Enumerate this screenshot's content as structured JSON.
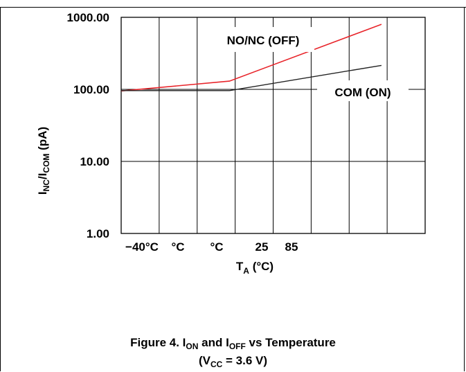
{
  "chart_data": {
    "type": "line",
    "categories": [
      "−40°C",
      "°C",
      "°C",
      "25",
      "85"
    ],
    "ylabel_main": "I",
    "ylabel_sub1": "NC",
    "ylabel_mid": "/I",
    "ylabel_sub2": "COM",
    "ylabel_tail": " (pA)",
    "xlabel_main": "T",
    "xlabel_sub": "A",
    "xlabel_tail": " (°C)",
    "yticks": [
      "1000.00",
      "100.00",
      "10.00",
      "1.00"
    ],
    "ytick_values": [
      1000,
      100,
      10,
      1
    ],
    "ylim": [
      1,
      1000
    ],
    "yscale": "log",
    "grid": true,
    "series": [
      {
        "name": "NO/NC (OFF)",
        "color": "#e8242a",
        "x": [
          0,
          2.85,
          6.85
        ],
        "values": [
          95,
          130,
          800
        ]
      },
      {
        "name": "COM (ON)",
        "color": "#222222",
        "x": [
          0,
          2.85,
          6.85
        ],
        "values": [
          96,
          96,
          215
        ]
      }
    ]
  },
  "caption": {
    "line1_a": "Figure 4. I",
    "line1_sub_a": "ON",
    "line1_b": " and I",
    "line1_sub_b": "OFF",
    "line1_c": " vs Temperature",
    "line2_a": "(V",
    "line2_sub": "CC",
    "line2_b": " = 3.6 V)"
  }
}
